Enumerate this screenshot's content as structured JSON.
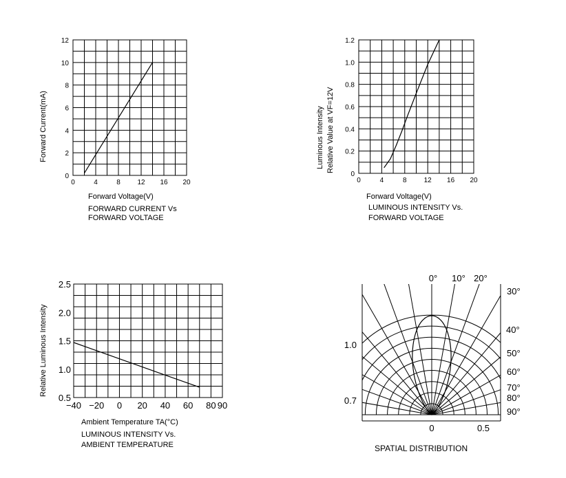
{
  "chart_data": [
    {
      "type": "line",
      "title": "FORWARD CURRENT Vs",
      "subtitle": "FORWARD VOLTAGE",
      "xlabel": "Forward Voltage(V)",
      "ylabel": "Forward Current(mA)",
      "xlim": [
        0,
        20
      ],
      "ylim": [
        0,
        12
      ],
      "xticks": [
        "0",
        "4",
        "8",
        "12",
        "16",
        "20"
      ],
      "yticks": [
        "0",
        "2",
        "4",
        "6",
        "8",
        "10",
        "12"
      ],
      "grid": true,
      "series": [
        {
          "x": [
            2.0,
            14.0
          ],
          "y": [
            0.2,
            10.0
          ]
        }
      ]
    },
    {
      "type": "line",
      "title": "LUMINOUS INTENSITY Vs.",
      "subtitle": "FORWARD VOLTAGE",
      "xlabel": "Forward Voltage(V)",
      "ylabel": "Luminous Intensity",
      "ylabel2": "Relative Value at VF=12V",
      "xlim": [
        0,
        20
      ],
      "ylim": [
        0,
        1.2
      ],
      "xticks": [
        "0",
        "4",
        "8",
        "12",
        "16",
        "20"
      ],
      "yticks": [
        "0",
        "0.2",
        "0.4",
        "0.6",
        "0.8",
        "1.0",
        "1.2"
      ],
      "grid": true,
      "series": [
        {
          "x": [
            4.4,
            5.5,
            6.5,
            7.5,
            8.5,
            10.0,
            12.0,
            14.0
          ],
          "y": [
            0.05,
            0.13,
            0.25,
            0.38,
            0.52,
            0.72,
            0.98,
            1.2
          ]
        }
      ]
    },
    {
      "type": "line",
      "title": "LUMINOUS INTENSITY Vs.",
      "subtitle": "AMBIENT TEMPERATURE",
      "xlabel": "Ambient Temperature TA(°C)",
      "ylabel": "Relative Luminous Intensity",
      "xlim": [
        -40,
        90
      ],
      "ylim": [
        0.5,
        2.5
      ],
      "xticks": [
        "-40",
        "-20",
        "0",
        "20",
        "40",
        "60",
        "80",
        "90"
      ],
      "yticks": [
        "0.5",
        "1.0",
        "1.5",
        "2.0",
        "2.5"
      ],
      "grid": true,
      "series": [
        {
          "x": [
            -40,
            70
          ],
          "y": [
            1.47,
            0.68
          ]
        }
      ]
    },
    {
      "type": "polar",
      "title": "SPATIAL DISTRIBUTION",
      "angle_labels": [
        "0°",
        "10°",
        "20°",
        "30°",
        "40°",
        "50°",
        "60°",
        "70°",
        "80°",
        "90°"
      ],
      "left_labels": [
        "1.0",
        "0.7"
      ],
      "bottom_labels": [
        "0",
        "0.5"
      ],
      "pattern": {
        "half_angle_deg": 22
      }
    }
  ]
}
